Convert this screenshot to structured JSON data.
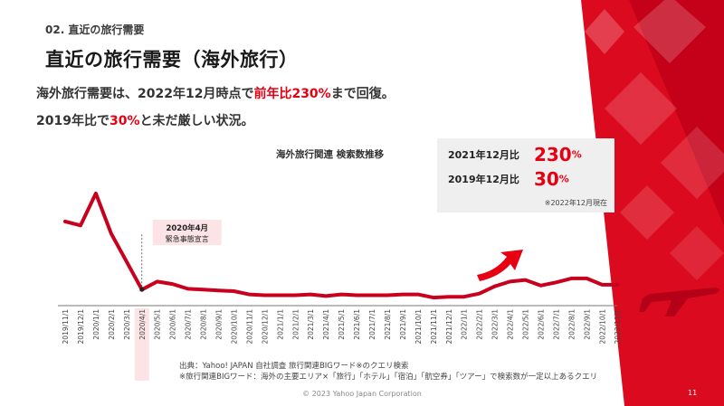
{
  "header": {
    "section": "02. 直近の旅行需要",
    "title": "直近の旅行需要（海外旅行）"
  },
  "lead": {
    "line1_pre": "海外旅行需要は、2022年12月時点で",
    "line1_hl": "前年比230%",
    "line1_post": "まで回復。",
    "line2_pre": "2019年比で",
    "line2_hl": "30%",
    "line2_post": "と未だ厳しい状況。"
  },
  "kpi": {
    "row1_label": "2021年12月比",
    "row1_value": "230",
    "row1_unit": "%",
    "row2_label": "2019年12月比",
    "row2_value": "30",
    "row2_unit": "%",
    "note": "※2022年12月現在"
  },
  "chart_data": {
    "type": "line",
    "title": "海外旅行関連 検索数推移",
    "line_color": "#c8001e",
    "highlight_color": "#fbe3e6",
    "arrow_color": "#e60012",
    "x": [
      "2019/11/1",
      "2019/12/1",
      "2020/1/1",
      "2020/2/1",
      "2020/3/1",
      "2020/4/1",
      "2020/5/1",
      "2020/6/1",
      "2020/7/1",
      "2020/8/1",
      "2020/9/1",
      "2020/10/1",
      "2020/11/1",
      "2020/12/1",
      "2021/1/1",
      "2021/2/1",
      "2021/3/1",
      "2021/4/1",
      "2021/5/1",
      "2021/6/1",
      "2021/7/1",
      "2021/8/1",
      "2021/9/1",
      "2021/10/1",
      "2021/11/1",
      "2021/12/1",
      "2022/1/1",
      "2022/2/1",
      "2022/3/1",
      "2022/4/1",
      "2022/5/1",
      "2022/6/1",
      "2022/7/1",
      "2022/8/1",
      "2022/9/1",
      "2022/10/1",
      "2022/11/1"
    ],
    "values": [
      95,
      90,
      130,
      80,
      45,
      10,
      20,
      17,
      11,
      10,
      9,
      8,
      4,
      3,
      3,
      3,
      4,
      2,
      4,
      3,
      3,
      3,
      4,
      4,
      0,
      1,
      1,
      5,
      14,
      20,
      22,
      15,
      19,
      24,
      24,
      16,
      16
    ],
    "ylim": [
      -10,
      140
    ],
    "highlight_category": "2020/4/1",
    "annotation": {
      "category": "2020/4/1",
      "line1": "2020年4月",
      "line2": "緊急事態宣言"
    }
  },
  "footer": {
    "source_line1": "出典：Yahoo! JAPAN 自社調査 旅行関連BIGワード※のクエリ検索",
    "source_line2": "※旅行関連BIGワード：海外の主要エリア×「旅行」「ホテル」「宿泊」「航空券」「ツアー」で検索数が一定以上あるクエリ",
    "copyright": "© 2023 Yahoo Japan Corporation",
    "page_number": "11"
  }
}
